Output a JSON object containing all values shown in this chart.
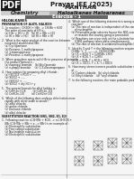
{
  "bg_color": "#f5f5f5",
  "header_text": "Prayas JEE (2025)",
  "subheader_text": "MANTHAN",
  "section_label_left": "Chemistry",
  "section_label_right": "Haloalkanes Haloarenes",
  "exercise_text": "Exercise - 1",
  "bold_section1": "HALOALKANES",
  "subsection1": "PREPARATION OF ALKYL HALIDES",
  "left_lines": [
    "1.  In reaction : CH3OH + HBr  -> CH3Br + H2O",
    "    The order of reactivity of HX is :",
    "    (a) HBr > HCl > HI    (b) HI > HBr > HCl",
    "    (c) HI > HBr > HCl    (d) HI > HBr > HI",
    "",
    "2.  What is the major product of the reaction between",
    "    neopentyl alcohol and HBr:",
    "    (a) Cyclopentane",
    "    (b) Pentane, 1-methylpropane",
    "    (c) 1-bromopentane",
    "    (d) Pentane, 2-methylpropane",
    "",
    "3.  When propylene reacts with HBr in presence of peroxide",
    "    the product formed is :",
    "    (a) isopropyl bromide    (b) Allyl bromide",
    "    (c) n-propyl bromide     (d) 1,3-dibromopropane",
    "",
    "4.  How catalyst for preparing alkyl chloride :",
    "    (a) (SOCl)2 + PCl3 + .....",
    "    (b) SOCl2 + .....",
    "    (c) (SOCl)2 + .....",
    "    (d) SOCl2 + dry HCl + y",
    "",
    "5.  The general formula for alkyl halides is :",
    "    (a) CnH(2n+1)X         (b) CnH(2n-1)X",
    "    (c) CnH(2n-1)X         (d) CnH(2n+1)X",
    "",
    "6.  Which of the following does undergo chlorination more",
    "    rapidly with silver oxide at anode?",
    "    (a) alkyl chloride",
    "    (b) arene chloride",
    "    (c) Dialkane chloride",
    "    (d) alkyl chloride"
  ],
  "section2_bold": "SUBSTITUTION REACTION (SN1, SN2, E1, E2)",
  "left_lines2": [
    "1.  Following reaction nC3H7Br + KCN --> n-C3H7CN +",
    "    KBr (C3H7Br + KBr + e --> KBr) is an example of :",
    "    (a) Electrophilic substitution",
    "    (b) Free radical substitution",
    "    (c) Nucleophilic substitution",
    "    (d) Electrophilic substitution"
  ],
  "right_lines": [
    "4.  Which one of the following statement is wrong about (SN1)",
    "    reaction?",
    "    (a) The rate of reaction is independent of the concentration",
    "        of nucleophile",
    "    (b) Polarisable polar solvents favour the SN1 reaction",
    "        or retarder the leaving going to proceeded",
    "    (c) Reactions can occur only on the substrate formation",
    "        if SN1 pathway takes place simultaneously",
    "    (d) The rate of reaction is unilateral(nucleophilic)",
    "",
    "5.  Identify X and Y in the following reaction sequence:",
    "    CH3Br  +  Y  -------->  CH3(H)CHBr",
    "    (a) (X = KCN, Y = C2H5Br, CH3)",
    "    (b) (X + KCN, Y = C2H5)",
    "    (c) (X = KCN, Y = KCN + HCI)",
    "    (d) (X = (OCC), Y = X, Y = KOCI)",
    "",
    "6.  How many stereo isomers possible substitution reactions",
    "    of ...",
    "    (a) Carbon chloride   (b) alkyl chloride",
    "    (c) Ethyl chloride    (d) *aryl chloride",
    "",
    "7.  In the following reaction, the main probable product will be:"
  ],
  "pdf_watermark": "PDF",
  "page_num": "1"
}
